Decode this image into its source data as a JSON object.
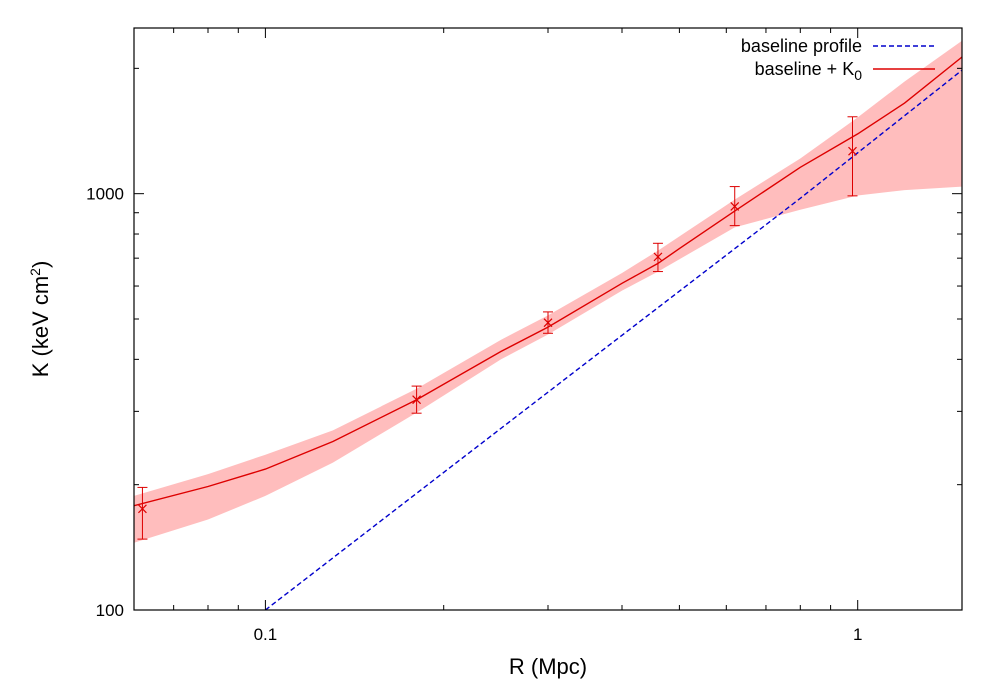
{
  "chart_data": {
    "type": "line",
    "title": "",
    "x_scale": "log",
    "y_scale": "log",
    "xlim": [
      0.06,
      1.5
    ],
    "ylim": [
      100,
      2500
    ],
    "x_ticks": [
      {
        "value": 0.1,
        "label": "0.1"
      },
      {
        "value": 1,
        "label": "1"
      }
    ],
    "y_ticks": [
      {
        "value": 100,
        "label": "100"
      },
      {
        "value": 1000,
        "label": "1000"
      }
    ],
    "xlabel": "R (Mpc)",
    "ylabel_main": "K (keV cm",
    "ylabel_sup": "2",
    "ylabel_close": ")",
    "grid": false,
    "legend_position": "top-right",
    "legend": [
      {
        "key": "baseline",
        "label": "baseline profile",
        "sub": ""
      },
      {
        "key": "fit",
        "label": "baseline + K",
        "sub": "0"
      }
    ],
    "series": [
      {
        "key": "baseline",
        "style": "dashed",
        "color": "#0000cc",
        "x": [
          0.1,
          0.2,
          0.4,
          0.8,
          1.5
        ],
        "y": [
          100,
          214,
          457,
          975,
          1980
        ]
      },
      {
        "key": "fit",
        "style": "solid",
        "color": "#dd0000",
        "x": [
          0.06,
          0.08,
          0.1,
          0.13,
          0.18,
          0.25,
          0.3,
          0.4,
          0.46,
          0.5,
          0.62,
          0.8,
          1.0,
          1.2,
          1.5
        ],
        "y": [
          178,
          198,
          218,
          254,
          320,
          418,
          478,
          609,
          680,
          738,
          908,
          1157,
          1392,
          1650,
          2130
        ]
      }
    ],
    "confidence_band": {
      "color": "#ffb6b6",
      "x": [
        0.06,
        0.08,
        0.1,
        0.13,
        0.18,
        0.25,
        0.3,
        0.4,
        0.46,
        0.62,
        0.8,
        1.0,
        1.2,
        1.5
      ],
      "lower": [
        145,
        165,
        188,
        226,
        298,
        400,
        459,
        585,
        650,
        830,
        915,
        990,
        1020,
        1040
      ],
      "upper": [
        188,
        212,
        236,
        270,
        340,
        446,
        510,
        645,
        730,
        968,
        1215,
        1525,
        1860,
        2330
      ]
    },
    "data_points": {
      "color": "#dd0000",
      "marker": "x",
      "points": [
        {
          "x": 0.062,
          "y": 175,
          "err_low": 148,
          "err_high": 197
        },
        {
          "x": 0.18,
          "y": 320,
          "err_low": 297,
          "err_high": 345
        },
        {
          "x": 0.3,
          "y": 490,
          "err_low": 462,
          "err_high": 520
        },
        {
          "x": 0.46,
          "y": 705,
          "err_low": 650,
          "err_high": 760
        },
        {
          "x": 0.62,
          "y": 932,
          "err_low": 838,
          "err_high": 1040
        },
        {
          "x": 0.98,
          "y": 1265,
          "err_low": 988,
          "err_high": 1530
        }
      ]
    }
  }
}
